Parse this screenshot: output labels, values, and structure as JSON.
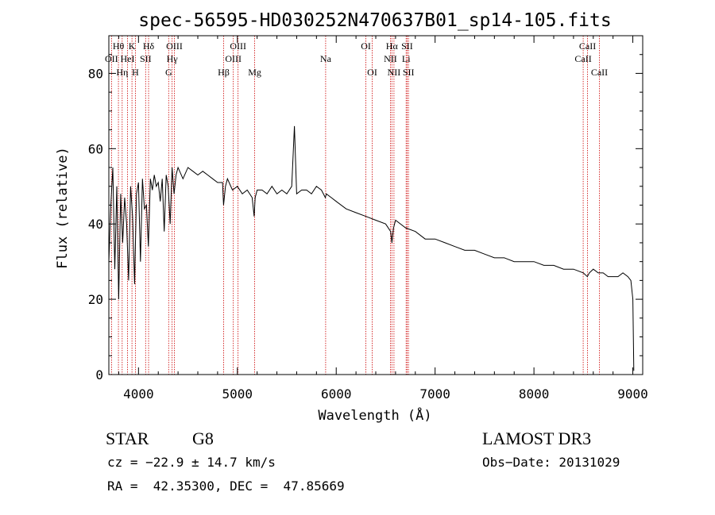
{
  "chart_data": {
    "type": "line",
    "title": "spec-56595-HD030252N470637B01_sp14-105.fits",
    "xlabel": "Wavelength (Å)",
    "ylabel": "Flux (relative)",
    "xlim": [
      3700,
      9100
    ],
    "ylim": [
      0,
      90
    ],
    "xticks": [
      4000,
      5000,
      6000,
      7000,
      8000,
      9000
    ],
    "yticks": [
      0,
      20,
      40,
      60,
      80
    ],
    "series": [
      {
        "name": "flux",
        "x": [
          3700,
          3720,
          3740,
          3760,
          3780,
          3800,
          3820,
          3840,
          3860,
          3880,
          3900,
          3920,
          3940,
          3960,
          3980,
          4000,
          4020,
          4040,
          4060,
          4080,
          4100,
          4120,
          4140,
          4160,
          4180,
          4200,
          4220,
          4240,
          4260,
          4280,
          4300,
          4320,
          4340,
          4360,
          4380,
          4400,
          4450,
          4500,
          4550,
          4600,
          4650,
          4700,
          4750,
          4800,
          4850,
          4860,
          4880,
          4900,
          4950,
          5000,
          5050,
          5100,
          5150,
          5170,
          5180,
          5200,
          5250,
          5300,
          5350,
          5400,
          5450,
          5500,
          5550,
          5577,
          5600,
          5650,
          5700,
          5750,
          5800,
          5850,
          5890,
          5900,
          5950,
          6000,
          6100,
          6200,
          6300,
          6400,
          6500,
          6550,
          6563,
          6580,
          6600,
          6700,
          6800,
          6900,
          7000,
          7100,
          7200,
          7300,
          7400,
          7500,
          7600,
          7700,
          7800,
          7900,
          8000,
          8100,
          8200,
          8300,
          8400,
          8500,
          8540,
          8560,
          8600,
          8650,
          8700,
          8750,
          8800,
          8850,
          8900,
          8950,
          8980,
          9000,
          9010
        ],
        "y": [
          30,
          45,
          55,
          28,
          50,
          20,
          48,
          35,
          47,
          40,
          25,
          50,
          42,
          24,
          48,
          51,
          30,
          52,
          44,
          45,
          34,
          52,
          49,
          53,
          50,
          51,
          46,
          52,
          38,
          53,
          50,
          40,
          55,
          48,
          53,
          55,
          52,
          55,
          54,
          53,
          54,
          53,
          52,
          51,
          51,
          45,
          50,
          52,
          49,
          50,
          48,
          49,
          47,
          42,
          47,
          49,
          49,
          48,
          50,
          48,
          49,
          48,
          50,
          66,
          48,
          49,
          49,
          48,
          50,
          49,
          47,
          48,
          47,
          46,
          44,
          43,
          42,
          41,
          40,
          38,
          35,
          39,
          41,
          39,
          38,
          36,
          36,
          35,
          34,
          33,
          33,
          32,
          31,
          31,
          30,
          30,
          30,
          29,
          29,
          28,
          28,
          27,
          26,
          27,
          28,
          27,
          27,
          26,
          26,
          26,
          27,
          26,
          25,
          20,
          1
        ]
      }
    ],
    "lines": [
      {
        "label": "Hθ",
        "wave": 3797,
        "row": 1
      },
      {
        "label": "OII",
        "wave": 3727,
        "row": 2
      },
      {
        "label": "Hη",
        "wave": 3835,
        "row": 3
      },
      {
        "label": "K",
        "wave": 3934,
        "row": 1
      },
      {
        "label": "HeI",
        "wave": 3889,
        "row": 2
      },
      {
        "label": "H",
        "wave": 3969,
        "row": 3
      },
      {
        "label": "Hδ",
        "wave": 4102,
        "row": 1
      },
      {
        "label": "SII",
        "wave": 4072,
        "row": 2
      },
      {
        "label": "OIII",
        "wave": 4363,
        "row": 1
      },
      {
        "label": "Hγ",
        "wave": 4340,
        "row": 2
      },
      {
        "label": "G",
        "wave": 4305,
        "row": 3
      },
      {
        "label": "Hβ",
        "wave": 4861,
        "row": 3
      },
      {
        "label": "OIII",
        "wave": 5007,
        "row": 1
      },
      {
        "label": "OIII",
        "wave": 4959,
        "row": 2
      },
      {
        "label": "Mg",
        "wave": 5175,
        "row": 3
      },
      {
        "label": "Na",
        "wave": 5893,
        "row": 2
      },
      {
        "label": "OI",
        "wave": 6300,
        "row": 1
      },
      {
        "label": "OI",
        "wave": 6364,
        "row": 3
      },
      {
        "label": "Hα",
        "wave": 6563,
        "row": 1
      },
      {
        "label": "NII",
        "wave": 6548,
        "row": 2
      },
      {
        "label": "NII",
        "wave": 6584,
        "row": 3
      },
      {
        "label": "SII",
        "wave": 6717,
        "row": 1
      },
      {
        "label": "Li",
        "wave": 6707,
        "row": 2
      },
      {
        "label": "SII",
        "wave": 6731,
        "row": 3
      },
      {
        "label": "CaII",
        "wave": 8542,
        "row": 1
      },
      {
        "label": "CaII",
        "wave": 8498,
        "row": 2
      },
      {
        "label": "CaII",
        "wave": 8662,
        "row": 3
      }
    ]
  },
  "info": {
    "class_label": "STAR",
    "subclass": "G8",
    "survey": "LAMOST DR3",
    "cz": "cz = −22.9 ± 14.7 km/s",
    "obs_date": "Obs−Date: 20131029",
    "radec": "RA =  42.35300, DEC =  47.85669"
  },
  "colors": {
    "axis": "#000000",
    "spectrum": "#000000",
    "line_marker": "#cc0000"
  }
}
